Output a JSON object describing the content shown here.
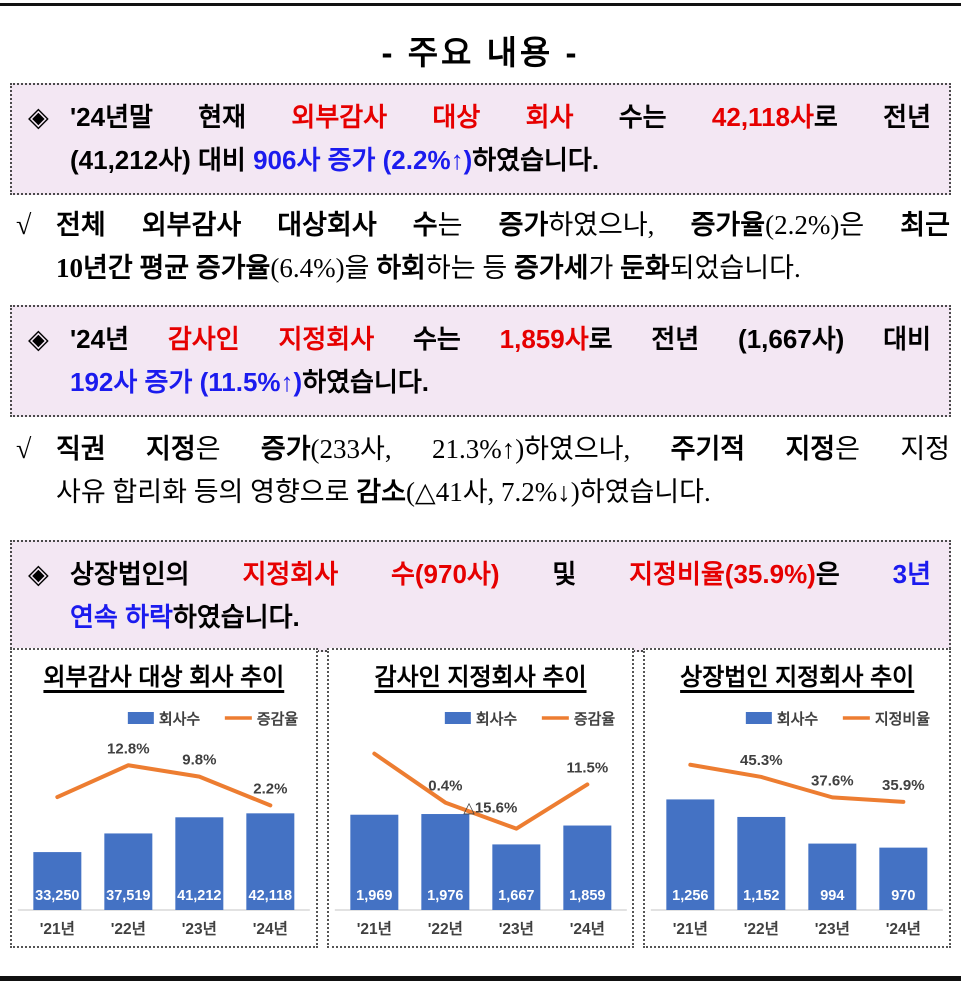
{
  "page": {
    "title": "- 주요 내용 -"
  },
  "colors": {
    "highlight_box_bg": "#f3e7f3",
    "accent_red": "#e60000",
    "accent_blue": "#1b1bee",
    "bar_blue": "#4472c4",
    "line_orange": "#ed7d31",
    "chart_label_gray": "#404040"
  },
  "boxes": [
    {
      "bullet": "◈",
      "line1": [
        {
          "t": "'24년말 현재 ",
          "c": ""
        },
        {
          "t": "외부감사 대상 회사",
          "c": "r"
        },
        {
          "t": " 수는 ",
          "c": ""
        },
        {
          "t": "42,118사",
          "c": "r"
        },
        {
          "t": "로 전년",
          "c": ""
        }
      ],
      "line2": [
        {
          "t": "(41,212사) 대비 ",
          "c": ""
        },
        {
          "t": "906사 증가 (2.2%↑)",
          "c": "u"
        },
        {
          "t": "하였습니다.",
          "c": ""
        }
      ]
    },
    {
      "bullet": "◈",
      "line1": [
        {
          "t": "'24년 ",
          "c": ""
        },
        {
          "t": "감사인 지정회사",
          "c": "r"
        },
        {
          "t": " 수는 ",
          "c": ""
        },
        {
          "t": "1,859사",
          "c": "r"
        },
        {
          "t": "로 전년 (1,667사) 대비",
          "c": ""
        }
      ],
      "line2": [
        {
          "t": "192사 증가 (11.5%↑)",
          "c": "u"
        },
        {
          "t": "하였습니다.",
          "c": ""
        }
      ]
    },
    {
      "bullet": "◈",
      "line1": [
        {
          "t": "상장법인의 ",
          "c": ""
        },
        {
          "t": "지정회사 수(970사)",
          "c": "r"
        },
        {
          "t": " 및 ",
          "c": ""
        },
        {
          "t": "지정비율(35.9%)",
          "c": "r"
        },
        {
          "t": "은 ",
          "c": ""
        },
        {
          "t": "3년",
          "c": "u"
        }
      ],
      "line2": [
        {
          "t": "연속 하락",
          "c": "u"
        },
        {
          "t": "하였습니다.",
          "c": ""
        }
      ]
    }
  ],
  "paragraphs": [
    {
      "marker": "√",
      "line1": [
        {
          "t": "전체 외부감사 대상회사 수",
          "c": "bd"
        },
        {
          "t": "는 ",
          "c": ""
        },
        {
          "t": "증가",
          "c": "bd"
        },
        {
          "t": "하였으나, ",
          "c": ""
        },
        {
          "t": "증가율",
          "c": "bd"
        },
        {
          "t": "(2.2%)은 ",
          "c": ""
        },
        {
          "t": "최근",
          "c": "bd"
        }
      ],
      "line2": [
        {
          "t": "10년간 평균 증가율",
          "c": "bd"
        },
        {
          "t": "(6.4%)을 ",
          "c": ""
        },
        {
          "t": "하회",
          "c": "bd"
        },
        {
          "t": "하는 등 ",
          "c": ""
        },
        {
          "t": "증가세",
          "c": "bd"
        },
        {
          "t": "가 ",
          "c": ""
        },
        {
          "t": "둔화",
          "c": "bd"
        },
        {
          "t": "되었습니다.",
          "c": ""
        }
      ]
    },
    {
      "marker": "√",
      "line1": [
        {
          "t": "직권 지정",
          "c": "bd"
        },
        {
          "t": "은 ",
          "c": ""
        },
        {
          "t": "증가",
          "c": "bd"
        },
        {
          "t": "(233사, 21.3%↑)하였으나, ",
          "c": ""
        },
        {
          "t": "주기적 지정",
          "c": "bd"
        },
        {
          "t": "은 지정",
          "c": ""
        }
      ],
      "line2": [
        {
          "t": "사유 합리화 등의 영향으로 ",
          "c": ""
        },
        {
          "t": "감소",
          "c": "bd"
        },
        {
          "t": "(△41사, 7.2%↓)하였습니다.",
          "c": ""
        }
      ]
    }
  ],
  "chart_data": [
    {
      "type": "bar",
      "title": "외부감사 대상 회사 추이",
      "categories": [
        "'21년",
        "'22년",
        "'23년",
        "'24년"
      ],
      "series": [
        {
          "name": "회사수",
          "kind": "bar",
          "values": [
            33250,
            37519,
            41212,
            42118
          ],
          "labels": [
            "33,250",
            "37,519",
            "41,212",
            "42,118"
          ],
          "color": "#4472c4"
        },
        {
          "name": "증감율",
          "kind": "line",
          "values": [
            4.4,
            12.8,
            9.8,
            2.2
          ],
          "labels": [
            "",
            "12.8%",
            "9.8%",
            "2.2%"
          ],
          "color": "#ed7d31"
        }
      ],
      "bar_axis": {
        "min": 20000,
        "max": 47000
      },
      "line_axis": {
        "min": -8,
        "max": 20
      },
      "legend_position": "top-right",
      "grid": false
    },
    {
      "type": "bar",
      "title": "감사인 지정회사 추이",
      "categories": [
        "'21년",
        "'22년",
        "'23년",
        "'24년"
      ],
      "series": [
        {
          "name": "회사수",
          "kind": "bar",
          "values": [
            1969,
            1976,
            1667,
            1859
          ],
          "labels": [
            "1,969",
            "1,976",
            "1,667",
            "1,859"
          ],
          "color": "#4472c4"
        },
        {
          "name": "증감율",
          "kind": "line",
          "values": [
            30.4,
            0.4,
            -15.6,
            11.5
          ],
          "labels": [
            "",
            "0.4%",
            "△15.6%",
            "11.5%"
          ],
          "color": "#ed7d31"
        }
      ],
      "bar_axis": {
        "min": 1000,
        "max": 2200
      },
      "line_axis": {
        "min": -25,
        "max": 40
      },
      "legend_position": "top-right",
      "grid": false
    },
    {
      "type": "bar",
      "title": "상장법인 지정회사 추이",
      "categories": [
        "'21년",
        "'22년",
        "'23년",
        "'24년"
      ],
      "series": [
        {
          "name": "회사수",
          "kind": "bar",
          "values": [
            1256,
            1152,
            994,
            970
          ],
          "labels": [
            "1,256",
            "1,152",
            "994",
            "970"
          ],
          "color": "#4472c4"
        },
        {
          "name": "지정비율",
          "kind": "line",
          "values": [
            49.9,
            45.3,
            37.6,
            35.9
          ],
          "labels": [
            "",
            "45.3%",
            "37.6%",
            "35.9%"
          ],
          "color": "#ed7d31"
        }
      ],
      "bar_axis": {
        "min": 600,
        "max": 1300
      },
      "line_axis": {
        "min": 20,
        "max": 60
      },
      "legend_position": "top-right",
      "grid": false
    }
  ]
}
